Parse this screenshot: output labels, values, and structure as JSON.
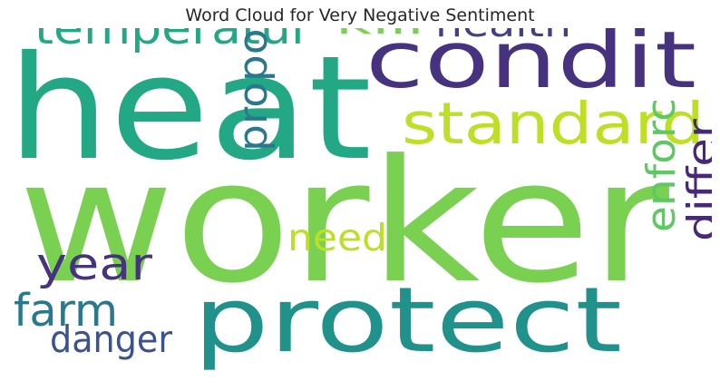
{
  "chart_data": {
    "type": "wordcloud",
    "title": "Word Cloud for Very Negative Sentiment",
    "colormap": "viridis",
    "background": "#ffffff",
    "words": [
      {
        "text": "worker",
        "color": "#7ad151",
        "orientation": "horizontal"
      },
      {
        "text": "heat",
        "color": "#22a884",
        "orientation": "horizontal"
      },
      {
        "text": "condit",
        "color": "#46327e",
        "orientation": "horizontal"
      },
      {
        "text": "protect",
        "color": "#21918c",
        "orientation": "horizontal"
      },
      {
        "text": "standard",
        "color": "#bddf26",
        "orientation": "horizontal"
      },
      {
        "text": "temperatur",
        "color": "#22a884",
        "orientation": "horizontal"
      },
      {
        "text": "health",
        "color": "#433e85",
        "orientation": "horizontal"
      },
      {
        "text": "kill",
        "color": "#7ad151",
        "orientation": "horizontal"
      },
      {
        "text": "year",
        "color": "#46327e",
        "orientation": "horizontal"
      },
      {
        "text": "farm",
        "color": "#2a788e",
        "orientation": "horizontal"
      },
      {
        "text": "danger",
        "color": "#3b528b",
        "orientation": "horizontal"
      },
      {
        "text": "need",
        "color": "#bddf26",
        "orientation": "horizontal"
      },
      {
        "text": "propos",
        "color": "#2a788e",
        "orientation": "vertical"
      },
      {
        "text": "enforc",
        "color": "#5ec962",
        "orientation": "vertical"
      },
      {
        "text": "differ",
        "color": "#482878",
        "orientation": "vertical"
      }
    ]
  }
}
